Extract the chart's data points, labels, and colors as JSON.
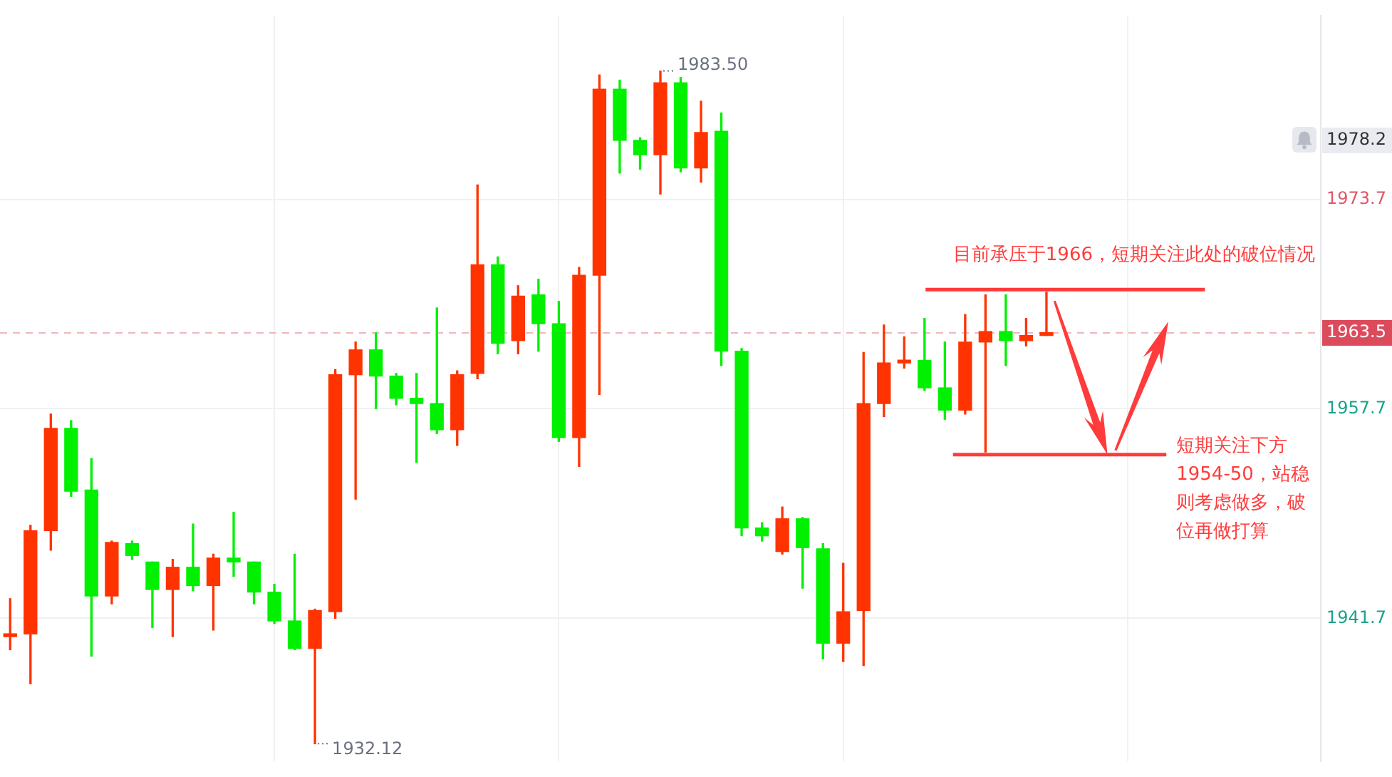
{
  "chart_data": {
    "type": "candlestick",
    "categories": [
      null,
      null,
      null,
      null,
      null,
      null,
      null,
      null,
      null,
      null,
      null,
      null,
      null,
      null,
      null,
      null,
      null,
      null,
      null,
      null,
      null,
      null,
      null,
      null,
      null,
      null,
      null,
      null,
      null,
      null,
      null,
      null,
      null,
      null,
      null,
      null,
      null,
      null,
      null,
      null,
      null,
      null,
      null,
      null,
      null,
      null,
      null,
      null,
      null,
      null,
      null,
      null,
      null,
      null,
      null,
      null,
      null,
      null,
      null,
      null,
      null,
      null,
      null,
      null,
      null
    ],
    "ohlc": [
      [
        1940.3,
        1943.2,
        1939.3,
        1940.4
      ],
      [
        1940.5,
        1948.8,
        1936.7,
        1948.4
      ],
      [
        1948.4,
        1957.3,
        1946.9,
        1956.2
      ],
      [
        1956.2,
        1956.8,
        1951.0,
        1951.4
      ],
      [
        1951.5,
        1953.9,
        1938.8,
        1943.4
      ],
      [
        1943.4,
        1947.6,
        1942.8,
        1947.5
      ],
      [
        1947.4,
        1947.6,
        1946.2,
        1946.5
      ],
      [
        1946.0,
        1946.0,
        1941.0,
        1943.9
      ],
      [
        1943.9,
        1946.2,
        1940.3,
        1945.6
      ],
      [
        1945.6,
        1948.9,
        1943.8,
        1944.2
      ],
      [
        1944.2,
        1946.6,
        1940.8,
        1946.3
      ],
      [
        1946.3,
        1949.8,
        1944.9,
        1946.0
      ],
      [
        1946.0,
        1946.0,
        1942.8,
        1943.7
      ],
      [
        1943.7,
        1944.3,
        1941.3,
        1941.5
      ],
      [
        1941.5,
        1946.6,
        1939.3,
        1939.4
      ],
      [
        1939.4,
        1942.4,
        1932.12,
        1942.3
      ],
      [
        1942.2,
        1960.7,
        1941.7,
        1960.3
      ],
      [
        1960.3,
        1962.8,
        1950.8,
        1962.2
      ],
      [
        1962.2,
        1963.5,
        1957.7,
        1960.2
      ],
      [
        1960.2,
        1960.4,
        1958.0,
        1958.5
      ],
      [
        1958.5,
        1960.4,
        1953.6,
        1958.1
      ],
      [
        1958.1,
        1965.4,
        1955.8,
        1956.1
      ],
      [
        1956.1,
        1960.6,
        1954.9,
        1960.3
      ],
      [
        1960.4,
        1974.8,
        1960.0,
        1968.7
      ],
      [
        1968.7,
        1969.3,
        1961.9,
        1962.7
      ],
      [
        1962.9,
        1967.1,
        1961.9,
        1966.3
      ],
      [
        1966.4,
        1967.6,
        1962.1,
        1964.2
      ],
      [
        1964.2,
        1965.9,
        1955.2,
        1955.5
      ],
      [
        1955.5,
        1968.5,
        1953.3,
        1967.9
      ],
      [
        1967.9,
        1983.2,
        1958.8,
        1982.1
      ],
      [
        1982.1,
        1982.8,
        1975.7,
        1978.2
      ],
      [
        1978.2,
        1978.4,
        1976.0,
        1977.1
      ],
      [
        1977.1,
        1983.5,
        1974.1,
        1982.6
      ],
      [
        1982.6,
        1983.0,
        1975.8,
        1976.1
      ],
      [
        1976.1,
        1981.2,
        1975.0,
        1978.8
      ],
      [
        1978.9,
        1980.3,
        1961.0,
        1962.1
      ],
      [
        1962.1,
        1962.3,
        1948.0,
        1948.6
      ],
      [
        1948.6,
        1949.0,
        1947.6,
        1948.0
      ],
      [
        1946.8,
        1950.2,
        1946.6,
        1949.3
      ],
      [
        1949.3,
        1949.4,
        1944.0,
        1947.1
      ],
      [
        1947.0,
        1947.4,
        1938.6,
        1939.8
      ],
      [
        1939.8,
        1945.9,
        1938.4,
        1942.2
      ],
      [
        1942.3,
        1962.0,
        1938.1,
        1958.1
      ],
      [
        1958.1,
        1964.1,
        1957.1,
        1961.2
      ],
      [
        1961.2,
        1963.2,
        1960.8,
        1961.3
      ],
      [
        1961.4,
        1964.6,
        1959.1,
        1959.3
      ],
      [
        1959.3,
        1962.8,
        1956.9,
        1957.6
      ],
      [
        1957.6,
        1964.9,
        1957.3,
        1962.8
      ],
      [
        1962.8,
        1966.4,
        1954.4,
        1963.6
      ],
      [
        1963.6,
        1966.4,
        1961.0,
        1962.9
      ],
      [
        1962.9,
        1964.6,
        1962.5,
        1963.3
      ],
      [
        1963.3,
        1966.6,
        1963.3,
        1963.5
      ],
      null,
      null,
      null,
      null,
      null,
      null,
      null,
      null,
      null,
      null,
      null,
      null,
      null
    ],
    "colors": [
      "#ff3300",
      "#ff3300",
      "#ff3300",
      "#00f000",
      "#00f000",
      "#ff3300",
      "#00f000",
      "#00f000",
      "#ff3300",
      "#00f000",
      "#ff3300",
      "#00f000",
      "#00f000",
      "#00f000",
      "#00f000",
      "#ff3300",
      "#ff3300",
      "#ff3300",
      "#00f000",
      "#00f000",
      "#00f000",
      "#00f000",
      "#ff3300",
      "#ff3300",
      "#00f000",
      "#ff3300",
      "#00f000",
      "#00f000",
      "#ff3300",
      "#ff3300",
      "#00f000",
      "#00f000",
      "#ff3300",
      "#00f000",
      "#ff3300",
      "#00f000",
      "#00f000",
      "#00f000",
      "#ff3300",
      "#00f000",
      "#00f000",
      "#ff3300",
      "#ff3300",
      "#ff3300",
      "#ff3300",
      "#00f000",
      "#00f000",
      "#ff3300",
      "#ff3300",
      "#00f000",
      "#ff3300",
      "#ff3300",
      null,
      null,
      null,
      null,
      null,
      null,
      null,
      null,
      null,
      null,
      null,
      null,
      null
    ],
    "ylim": [
      1930.8,
      1987.7
    ],
    "yticks": [
      1941.7,
      1957.7,
      1973.7
    ],
    "grid": true,
    "tick_labels": "y",
    "ref_lines": [
      {
        "axis": "y",
        "value": 1966.8,
        "label": "目前承压于1966，短期关注此处的破位情况",
        "color": "#ff3b3b"
      },
      {
        "axis": "y",
        "value": 1954.2,
        "label": "短期关注下方1954-50，站稳则考虑做多，破位再做打算",
        "color": "#ff3b3b"
      },
      {
        "axis": "y",
        "value": 1963.5,
        "label": "1963.5",
        "color": "#f1b7bd",
        "line_style": "dashed"
      }
    ],
    "annotations": [
      "1983.50",
      "1932.12",
      "1978.2"
    ]
  }
}
